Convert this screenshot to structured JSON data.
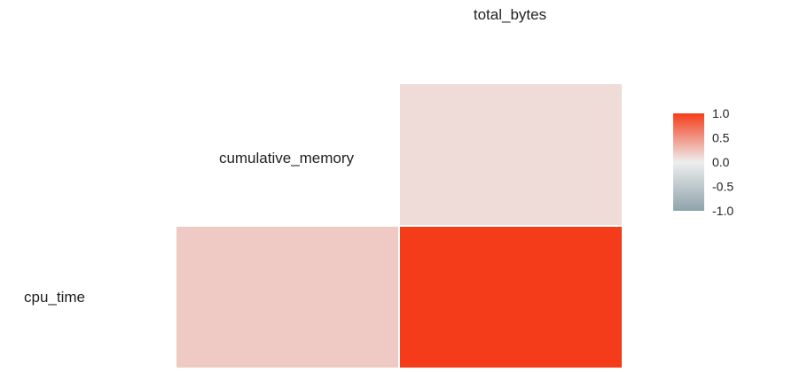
{
  "chart_data": {
    "type": "heatmap",
    "title": "",
    "variables_x": [
      "cumulative_memory",
      "total_bytes"
    ],
    "variables_y": [
      "cumulative_memory",
      "cpu_time"
    ],
    "column_labels": [
      "total_bytes"
    ],
    "row_labels": [
      "cumulative_memory",
      "cpu_time"
    ],
    "cells": [
      {
        "row": "cumulative_memory",
        "col": "total_bytes",
        "value": 0.1
      },
      {
        "row": "cpu_time",
        "col": "cumulative_memory",
        "value": 0.2
      },
      {
        "row": "cpu_time",
        "col": "total_bytes",
        "value": 1.0
      }
    ],
    "color_scale": {
      "low": "#8ea3ab",
      "mid": "#eeeeee",
      "high": "#f43c1a",
      "range": [
        -1.0,
        1.0
      ]
    },
    "legend": {
      "position": "right",
      "ticks": [
        "1.0",
        "0.5",
        "0.0",
        "-0.5",
        "-1.0"
      ],
      "tick_values": [
        1.0,
        0.5,
        0.0,
        -0.5,
        -1.0
      ]
    }
  }
}
